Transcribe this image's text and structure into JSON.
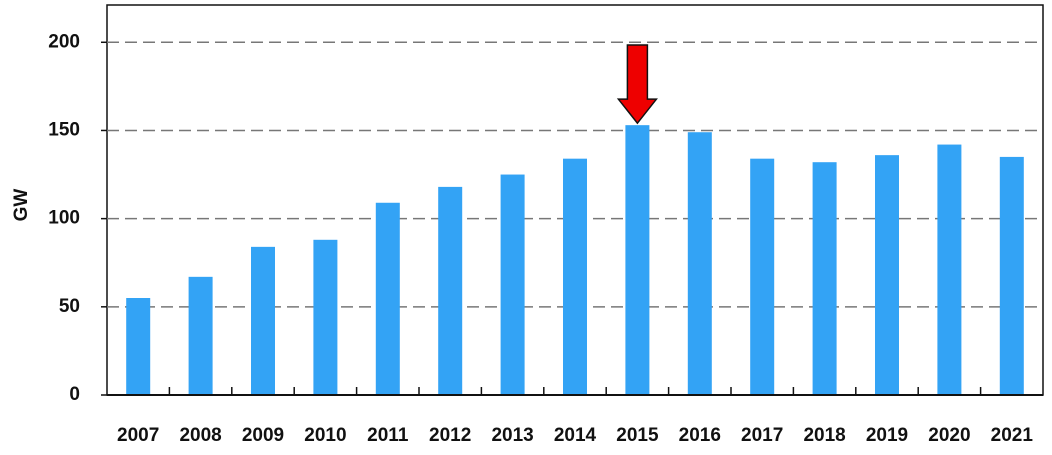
{
  "chart_data": {
    "type": "bar",
    "y_label": "GW",
    "categories": [
      "2007",
      "2008",
      "2009",
      "2010",
      "2011",
      "2012",
      "2013",
      "2014",
      "2015",
      "2016",
      "2017",
      "2018",
      "2019",
      "2020",
      "2021"
    ],
    "values": [
      55,
      67,
      84,
      88,
      109,
      118,
      125,
      134,
      153,
      149,
      134,
      132,
      136,
      142,
      135
    ],
    "color": "#33a3f5",
    "ylim": [
      0,
      220
    ],
    "yticks": [
      0,
      50,
      100,
      150,
      200
    ],
    "grid": true
  }
}
